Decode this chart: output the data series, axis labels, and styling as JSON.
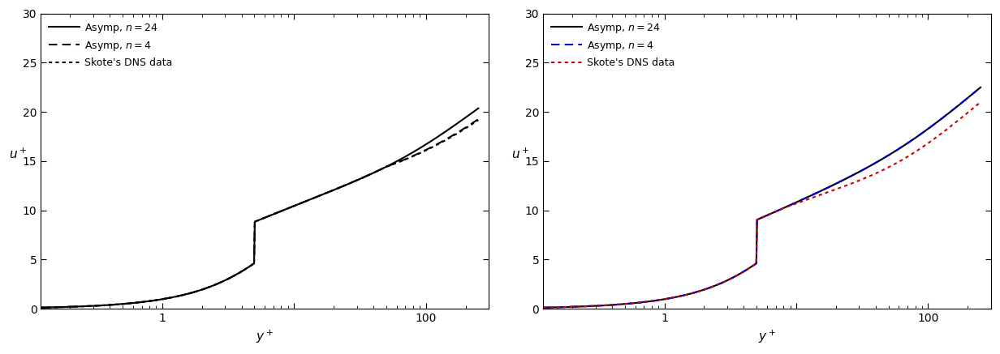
{
  "xlim": [
    0.12,
    300
  ],
  "ylim": [
    0,
    30
  ],
  "yticks": [
    0,
    5,
    10,
    15,
    20,
    25,
    30
  ],
  "background": "#ffffff",
  "linewidth": 1.5,
  "panel_a": {
    "lines": [
      {
        "label": "Asymp, $n = 24$",
        "style": "-",
        "color": "#000000"
      },
      {
        "label": "Asymp, $n = 4$",
        "style": "--",
        "color": "#000000"
      },
      {
        "label": "Skote's DNS data",
        "style": ":",
        "color": "#000000"
      }
    ]
  },
  "panel_b": {
    "lines": [
      {
        "label": "Asymp, $n = 24$",
        "style": "-",
        "color": "#000000"
      },
      {
        "label": "Asymp, $n = 4$",
        "style": "--",
        "color": "#0000cc"
      },
      {
        "label": "Skote's DNS data",
        "style": ":",
        "color": "#cc0000"
      }
    ]
  }
}
